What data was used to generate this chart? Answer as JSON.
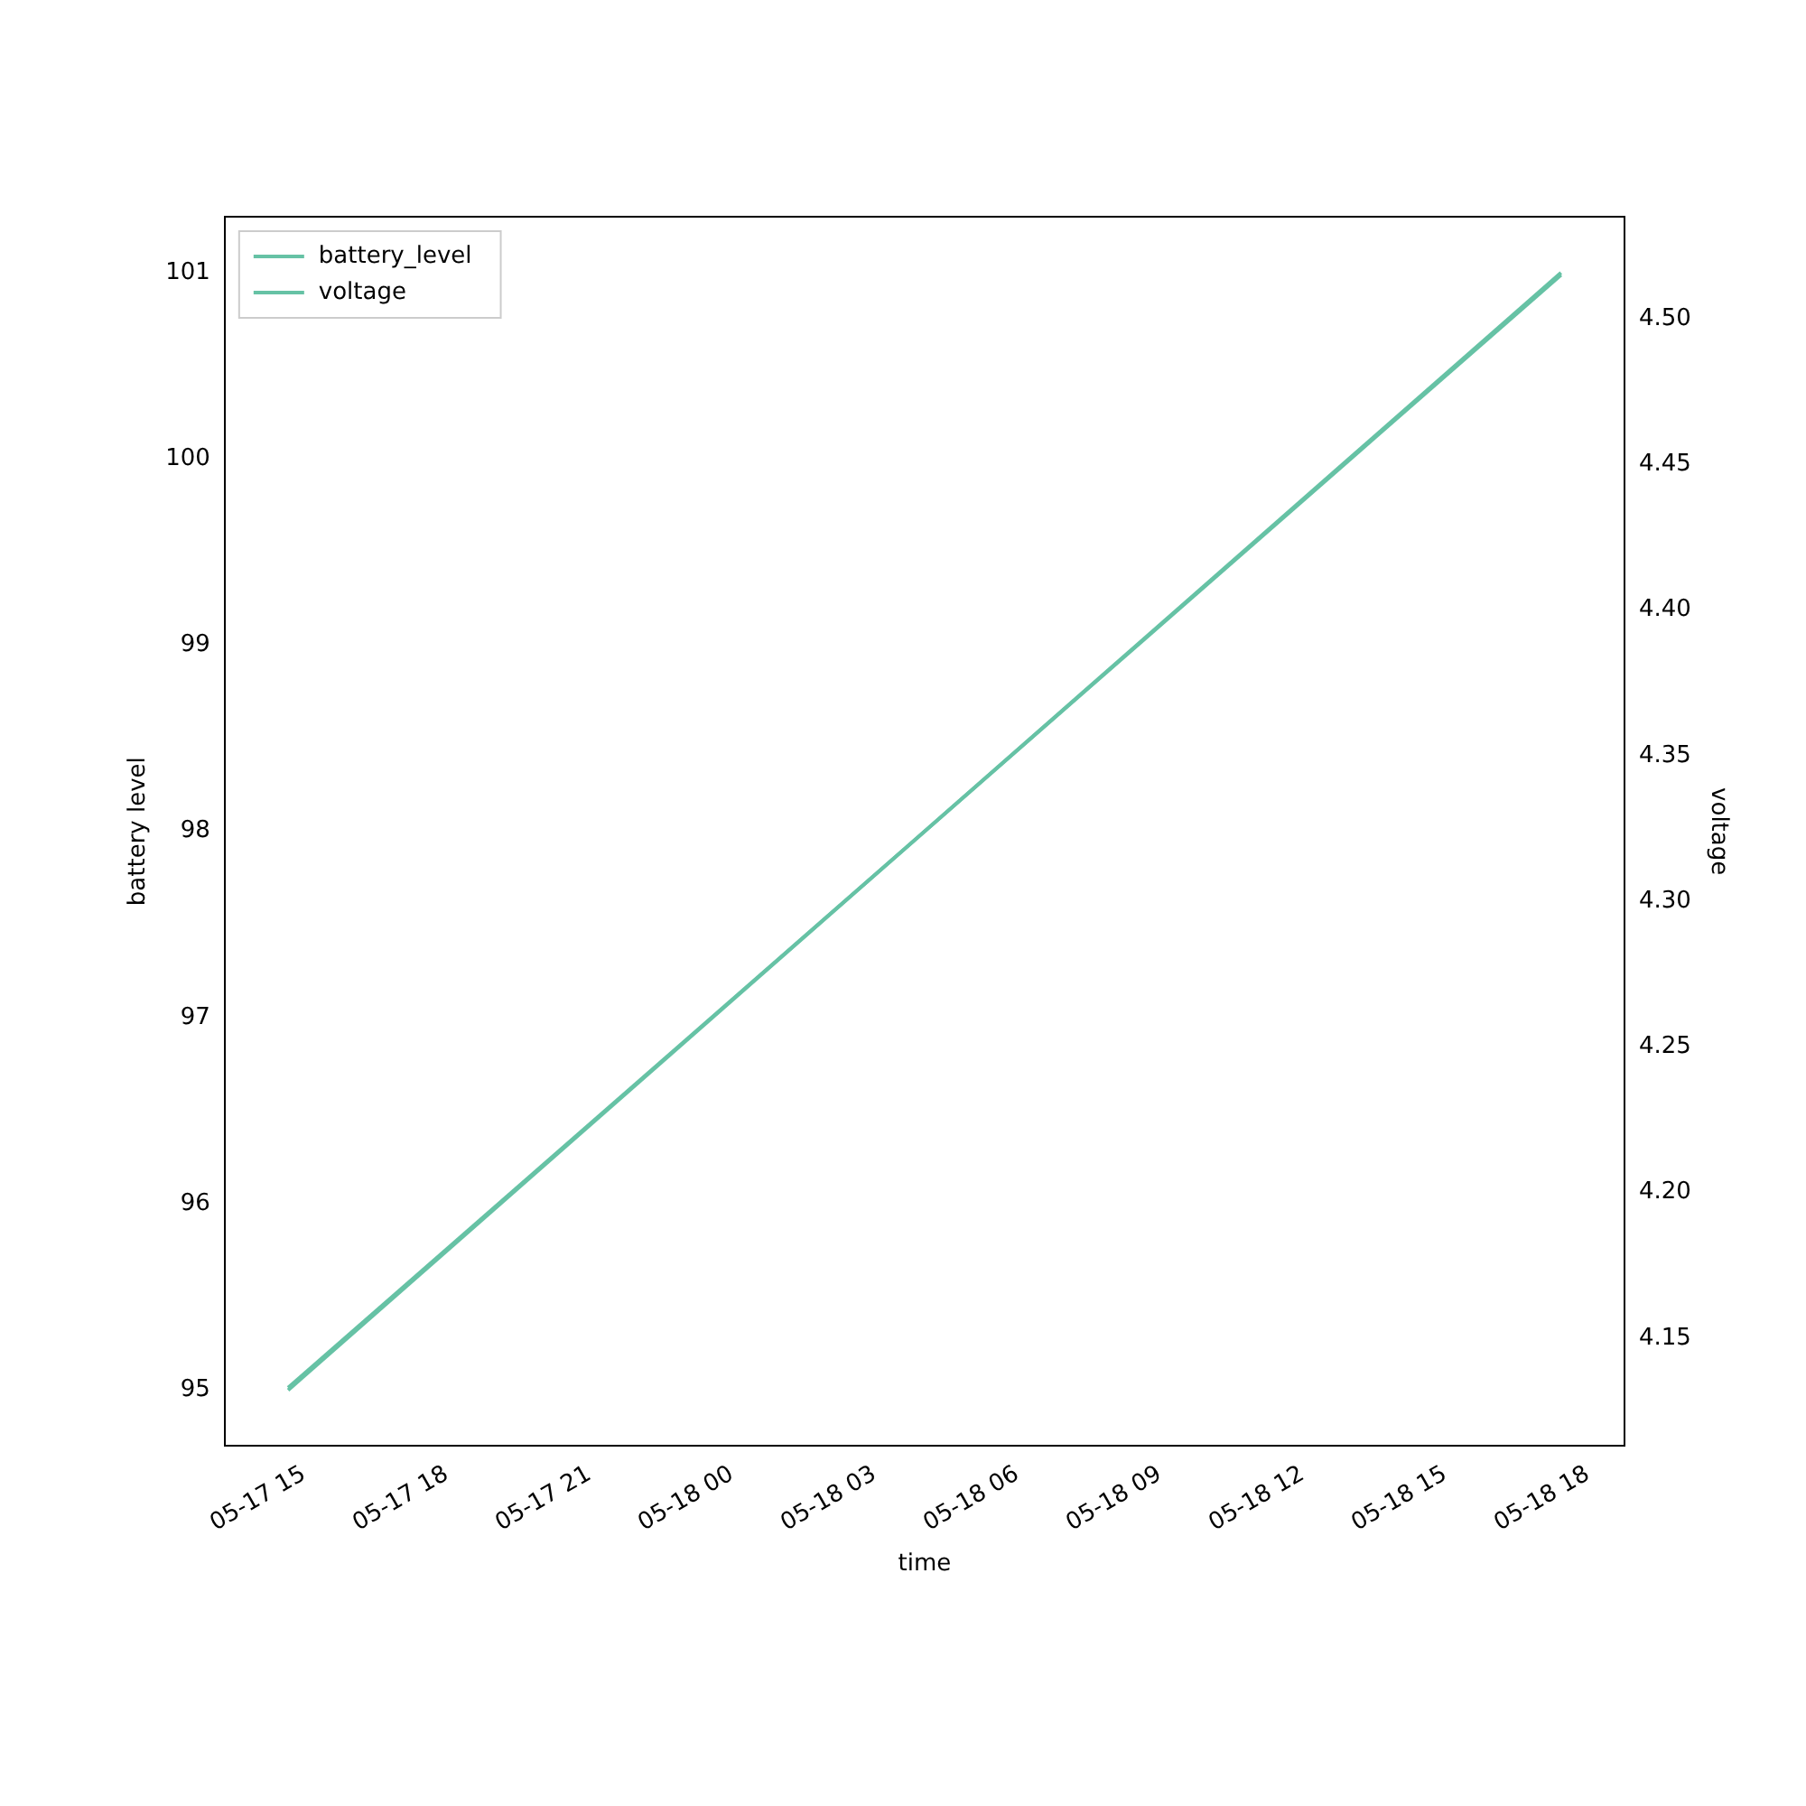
{
  "chart_data": {
    "type": "line",
    "xlabel": "time",
    "ylabel": "battery level",
    "y2label": "voltage",
    "series": [
      {
        "name": "battery_level",
        "color": "#66c2a5",
        "x": [
          "--05-17T14:40",
          "--05-18T17:26"
        ],
        "values": [
          95,
          101
        ]
      },
      {
        "name": "voltage",
        "color": "#66c2a5",
        "axis": "y2",
        "x": [
          "--05-17T14:40",
          "--05-18T17:26"
        ],
        "values": [
          4.133,
          4.515
        ]
      }
    ],
    "xlim": [
      "--05-17T13:20",
      "--05-18T18:46"
    ],
    "xticks": [
      {
        "value": "--05-17T15:00",
        "label": "05-17 15"
      },
      {
        "value": "--05-17T18:00",
        "label": "05-17 18"
      },
      {
        "value": "--05-17T21:00",
        "label": "05-17 21"
      },
      {
        "value": "--05-18T00:00",
        "label": "05-18 00"
      },
      {
        "value": "--05-18T03:00",
        "label": "05-18 03"
      },
      {
        "value": "--05-18T06:00",
        "label": "05-18 06"
      },
      {
        "value": "--05-18T09:00",
        "label": "05-18 09"
      },
      {
        "value": "--05-18T12:00",
        "label": "05-18 12"
      },
      {
        "value": "--05-18T15:00",
        "label": "05-18 15"
      },
      {
        "value": "--05-18T18:00",
        "label": "05-18 18"
      }
    ],
    "ylim": [
      94.7,
      101.3
    ],
    "yticks": [
      95,
      96,
      97,
      98,
      99,
      100,
      101
    ],
    "y2lim": [
      4.113,
      4.535
    ],
    "y2ticks": [
      {
        "value": 4.15,
        "label": "4.15"
      },
      {
        "value": 4.2,
        "label": "4.20"
      },
      {
        "value": 4.25,
        "label": "4.25"
      },
      {
        "value": 4.3,
        "label": "4.30"
      },
      {
        "value": 4.35,
        "label": "4.35"
      },
      {
        "value": 4.4,
        "label": "4.40"
      },
      {
        "value": 4.45,
        "label": "4.45"
      },
      {
        "value": 4.5,
        "label": "4.50"
      }
    ],
    "legend": "top left",
    "grid": false,
    "marker": "none",
    "line_style": "solid"
  }
}
